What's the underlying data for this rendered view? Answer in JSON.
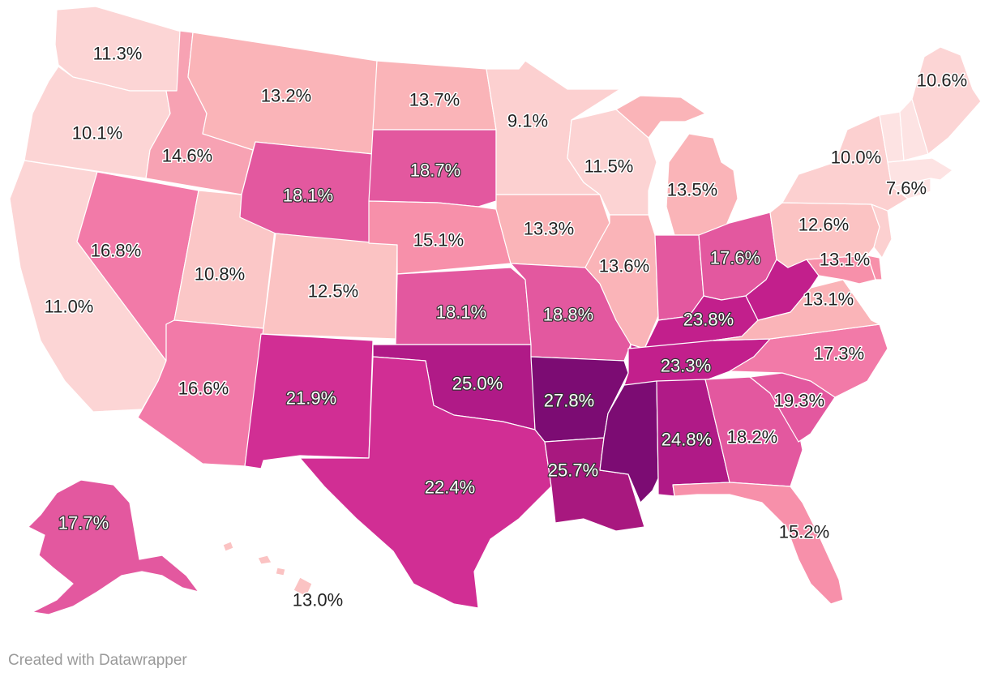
{
  "map": {
    "type": "choropleth",
    "region": "United States",
    "unit": "%",
    "colors": {
      "lightest": "#fcdede",
      "light": "#fbcfcf",
      "pale": "#fab4b8",
      "mid_light": "#f790aa",
      "mid": "#f27aa8",
      "strong": "#e3589f",
      "deep": "#d12e94",
      "deeper": "#b01a87",
      "darkest": "#7c0c73",
      "border": "#ffffff"
    },
    "states": [
      {
        "name": "Washington",
        "label": "11.3%",
        "value": 11.3
      },
      {
        "name": "Oregon",
        "label": "10.1%",
        "value": 10.1
      },
      {
        "name": "California",
        "label": "11.0%",
        "value": 11.0
      },
      {
        "name": "Idaho",
        "label": "14.6%",
        "value": 14.6
      },
      {
        "name": "Nevada",
        "label": "16.8%",
        "value": 16.8
      },
      {
        "name": "Montana",
        "label": "13.2%",
        "value": 13.2
      },
      {
        "name": "Wyoming",
        "label": "18.1%",
        "value": 18.1
      },
      {
        "name": "Utah",
        "label": "10.8%",
        "value": 10.8
      },
      {
        "name": "Colorado",
        "label": "12.5%",
        "value": 12.5
      },
      {
        "name": "Arizona",
        "label": "16.6%",
        "value": 16.6
      },
      {
        "name": "New Mexico",
        "label": "21.9%",
        "value": 21.9
      },
      {
        "name": "North Dakota",
        "label": "13.7%",
        "value": 13.7
      },
      {
        "name": "South Dakota",
        "label": "18.7%",
        "value": 18.7
      },
      {
        "name": "Nebraska",
        "label": "15.1%",
        "value": 15.1
      },
      {
        "name": "Kansas",
        "label": "18.1%",
        "value": 18.1
      },
      {
        "name": "Oklahoma",
        "label": "25.0%",
        "value": 25.0
      },
      {
        "name": "Texas",
        "label": "22.4%",
        "value": 22.4
      },
      {
        "name": "Minnesota",
        "label": "9.1%",
        "value": 9.1
      },
      {
        "name": "Iowa",
        "label": "13.3%",
        "value": 13.3
      },
      {
        "name": "Missouri",
        "label": "18.8%",
        "value": 18.8
      },
      {
        "name": "Arkansas",
        "label": "27.8%",
        "value": 27.8
      },
      {
        "name": "Louisiana",
        "label": "25.7%",
        "value": 25.7
      },
      {
        "name": "Wisconsin",
        "label": "11.5%",
        "value": 11.5
      },
      {
        "name": "Illinois",
        "label": "13.6%",
        "value": 13.6
      },
      {
        "name": "Michigan",
        "label": "13.5%",
        "value": 13.5
      },
      {
        "name": "Indiana",
        "label": "",
        "value": null
      },
      {
        "name": "Ohio",
        "label": "17.6%",
        "value": 17.6
      },
      {
        "name": "Kentucky",
        "label": "23.8%",
        "value": 23.8
      },
      {
        "name": "Tennessee",
        "label": "23.3%",
        "value": 23.3
      },
      {
        "name": "Mississippi",
        "label": "",
        "value": null
      },
      {
        "name": "Alabama",
        "label": "24.8%",
        "value": 24.8
      },
      {
        "name": "Georgia",
        "label": "18.2%",
        "value": 18.2
      },
      {
        "name": "Florida",
        "label": "15.2%",
        "value": 15.2
      },
      {
        "name": "South Carolina",
        "label": "19.3%",
        "value": 19.3
      },
      {
        "name": "North Carolina",
        "label": "17.3%",
        "value": 17.3
      },
      {
        "name": "Virginia",
        "label": "13.1%",
        "value": 13.1
      },
      {
        "name": "West Virginia",
        "label": "",
        "value": null
      },
      {
        "name": "Maryland",
        "label": "13.1%",
        "value": 13.1
      },
      {
        "name": "Delaware",
        "label": "",
        "value": null
      },
      {
        "name": "Pennsylvania",
        "label": "12.6%",
        "value": 12.6
      },
      {
        "name": "New York",
        "label": "10.0%",
        "value": 10.0
      },
      {
        "name": "New Jersey",
        "label": "",
        "value": null
      },
      {
        "name": "Connecticut",
        "label": "",
        "value": null
      },
      {
        "name": "Rhode Island",
        "label": "",
        "value": null
      },
      {
        "name": "Massachusetts",
        "label": "7.6%",
        "value": 7.6
      },
      {
        "name": "Vermont",
        "label": "",
        "value": null
      },
      {
        "name": "New Hampshire",
        "label": "",
        "value": null
      },
      {
        "name": "Maine",
        "label": "10.6%",
        "value": 10.6
      },
      {
        "name": "Alaska",
        "label": "17.7%",
        "value": 17.7
      },
      {
        "name": "Hawaii",
        "label": "13.0%",
        "value": 13.0
      }
    ]
  },
  "footer": {
    "credit": "Created with Datawrapper"
  }
}
